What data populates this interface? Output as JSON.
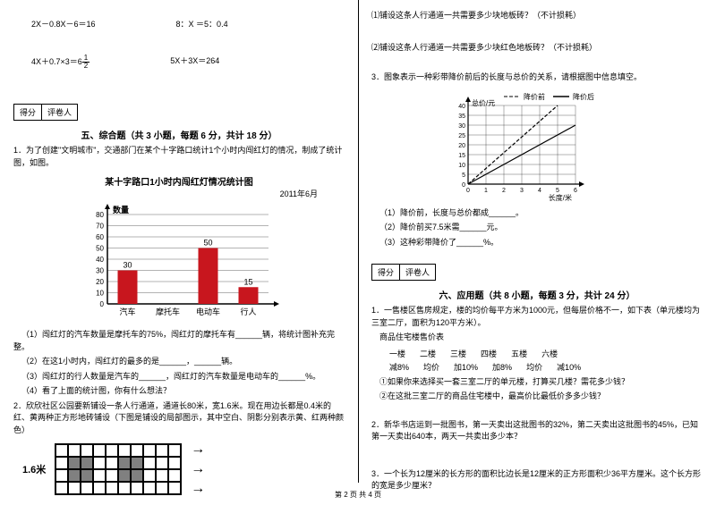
{
  "left": {
    "eq1": "2X－0.8X－6＝16",
    "eq2": "8：X ＝5：0.4",
    "eq3a": "4X＋0.7×3＝6",
    "eq3n": "1",
    "eq3d": "2",
    "eq4": "5X＋3X＝264",
    "scoreA": "得分",
    "scoreB": "评卷人",
    "section5": "五、综合题（共 3 小题，每题 6 分，共计 18 分）",
    "p1": "1．为了创建\"文明城市\"，交通部门在某个十字路口统计1个小时内闯红灯的情况，制成了统计图，如图。",
    "chartTitle": "某十字路口1小时内闯红灯情况统计图",
    "chartDate": "2011年6月",
    "yLabel": "数量",
    "bars": {
      "yticks": [
        0,
        10,
        20,
        30,
        40,
        50,
        60,
        70,
        80
      ],
      "cats": [
        "汽车",
        "摩托车",
        "电动车",
        "行人"
      ],
      "vals": [
        30,
        null,
        50,
        15
      ],
      "labels": [
        "30",
        "",
        "50",
        "15"
      ],
      "barColor": "#c8161e",
      "gridColor": "#000000",
      "ymax": 80
    },
    "q1": "（1）闯红灯的汽车数量是摩托车的75%，闯红灯的摩托车有______辆，将统计图补充完整。",
    "q2": "（2）在这1小时内，闯红灯的最多的是______，______辆。",
    "q3": "（3）闯红灯的行人数量是汽车的______，闯红灯的汽车数量是电动车的______%。",
    "q4": "（4）看了上面的统计图，你有什么想法？",
    "p2": "2．欣欣社区公园要新铺设一条人行通道，通道长80米，宽1.6米。现在用边长都是0.4米的红、黄两种正方形地砖铺设（下图是铺设的局部图示，其中空白、阴影分别表示黄、红两种颜色）",
    "tileLabel": "1.6米",
    "tileGrid": {
      "cols": 10,
      "rows": 4,
      "grayCells": [
        [
          1,
          1
        ],
        [
          1,
          2
        ],
        [
          2,
          1
        ],
        [
          2,
          2
        ],
        [
          1,
          5
        ],
        [
          1,
          6
        ],
        [
          2,
          5
        ],
        [
          2,
          6
        ]
      ]
    }
  },
  "right": {
    "rq1": "⑴铺设这条人行通道一共需要多少块地板砖？（不计损耗）",
    "rq2": "⑵铺设这条人行通道一共需要多少块红色地板砖？（不计损耗）",
    "p3": "3．图象表示一种彩带降价前后的长度与总价的关系，请根据图中信息填空。",
    "lineChart": {
      "legend1": "--- 降价前",
      "legend2": "—— 降价后",
      "yLabel": "总价/元",
      "xLabel": "长度/米",
      "xticks": [
        0,
        1,
        2,
        3,
        4,
        5,
        6
      ],
      "yticks": [
        0,
        5,
        10,
        15,
        20,
        25,
        30,
        35,
        40
      ],
      "preColor": "#000000",
      "postColor": "#000000",
      "preDash": "4,2",
      "prePoints": [
        [
          0,
          0
        ],
        [
          5,
          40
        ]
      ],
      "postPoints": [
        [
          0,
          0
        ],
        [
          6,
          30
        ]
      ]
    },
    "lq1": "（1）降价前，长度与总价都成______。",
    "lq2": "（2）降价前买7.5米需______元。",
    "lq3": "（3）这种彩带降价了______%。",
    "scoreA": "得分",
    "scoreB": "评卷人",
    "section6": "六、应用题（共 8 小题，每题 3 分，共计 24 分）",
    "ap1": "1．一售楼区售房规定，楼的均价每平方米为1000元，但每层价格不一，如下表（单元楼均为三室二厅，面积为120平方米）。",
    "tblTitle": "商品住宅楼售价表",
    "tblH": [
      "一楼",
      "二楼",
      "三楼",
      "四楼",
      "五楼",
      "六楼"
    ],
    "tblR": [
      "减8%",
      "均价",
      "加10%",
      "加8%",
      "均价",
      "减10%"
    ],
    "ap1q1": "①如果你来选择买一套三室二厅的单元楼，打算买几楼？需花多少钱？",
    "ap1q2": "②在这批三室二厅的商品住宅楼中，最高价比最低价多多少钱？",
    "ap2": "2．新华书店运到一批图书，第一天卖出这批图书的32%，第二天卖出这批图书的45%，已知第一天卖出640本，两天一共卖出多少本？",
    "ap3": "3．一个长为12厘米的长方形的面积比边长是12厘米的正方形面积少36平方厘米。这个长方形的宽是多少厘米？"
  },
  "footer": "第 2 页 共 4 页"
}
